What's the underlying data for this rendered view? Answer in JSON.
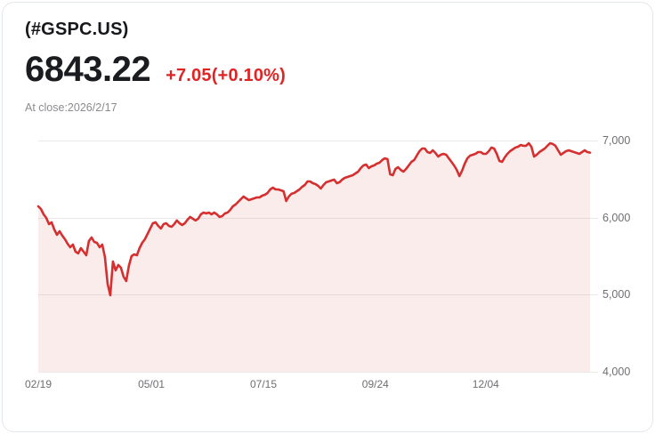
{
  "header": {
    "symbol": "(#GSPC.US)",
    "price": "6843.22",
    "change": "+7.05(+0.10%)",
    "close_info": "At close:2026/2/17"
  },
  "colors": {
    "line": "#d62f2f",
    "area": "rgba(214,47,47,0.09)",
    "change_text": "#e02424",
    "grid": "#e9e9e9",
    "axis_label": "#6e6e73"
  },
  "chart_data": {
    "type": "area",
    "title": "(#GSPC.US) one-year price history",
    "xlabel": "",
    "ylabel": "",
    "legend": "none",
    "grid": "horizontal",
    "ylim": [
      4000,
      7138
    ],
    "y_ticks": [
      {
        "label": "7,000",
        "value": 7000
      },
      {
        "label": "6,000",
        "value": 6000
      },
      {
        "label": "5,000",
        "value": 5000
      },
      {
        "label": "4,000",
        "value": 4000
      }
    ],
    "x_ticks": [
      {
        "label": "02/19",
        "t": 0.0
      },
      {
        "label": "05/01",
        "t": 0.205
      },
      {
        "label": "07/15",
        "t": 0.408
      },
      {
        "label": "09/24",
        "t": 0.611
      },
      {
        "label": "12/04",
        "t": 0.811
      }
    ],
    "values": [
      6146,
      6111,
      6042,
      5996,
      5915,
      5938,
      5846,
      5777,
      5823,
      5765,
      5719,
      5661,
      5615,
      5650,
      5558,
      5535,
      5604,
      5558,
      5511,
      5696,
      5742,
      5684,
      5673,
      5615,
      5650,
      5488,
      5142,
      4992,
      5431,
      5315,
      5385,
      5350,
      5235,
      5177,
      5373,
      5500,
      5523,
      5511,
      5604,
      5673,
      5719,
      5788,
      5858,
      5927,
      5938,
      5892,
      5858,
      5915,
      5927,
      5892,
      5881,
      5915,
      5962,
      5927,
      5904,
      5927,
      5973,
      6008,
      5985,
      5962,
      5985,
      6042,
      6065,
      6054,
      6065,
      6042,
      6065,
      6042,
      6008,
      6019,
      6054,
      6065,
      6100,
      6146,
      6169,
      6204,
      6238,
      6273,
      6250,
      6227,
      6238,
      6250,
      6261,
      6261,
      6284,
      6296,
      6319,
      6365,
      6388,
      6365,
      6365,
      6354,
      6342,
      6215,
      6273,
      6308,
      6319,
      6342,
      6365,
      6400,
      6423,
      6469,
      6469,
      6446,
      6434,
      6411,
      6377,
      6423,
      6458,
      6469,
      6481,
      6492,
      6446,
      6458,
      6492,
      6515,
      6527,
      6538,
      6550,
      6573,
      6596,
      6642,
      6677,
      6688,
      6642,
      6665,
      6677,
      6700,
      6711,
      6746,
      6769,
      6758,
      6561,
      6550,
      6631,
      6654,
      6619,
      6596,
      6631,
      6677,
      6723,
      6746,
      6804,
      6861,
      6896,
      6896,
      6850,
      6838,
      6873,
      6838,
      6792,
      6815,
      6827,
      6815,
      6769,
      6723,
      6677,
      6619,
      6538,
      6608,
      6700,
      6769,
      6804,
      6815,
      6827,
      6850,
      6850,
      6827,
      6827,
      6861,
      6908,
      6896,
      6827,
      6734,
      6723,
      6781,
      6827,
      6861,
      6884,
      6908,
      6919,
      6942,
      6931,
      6931,
      6965,
      6919,
      6792,
      6815,
      6850,
      6873,
      6896,
      6931,
      6965,
      6954,
      6931,
      6873,
      6815,
      6838,
      6861,
      6873,
      6861,
      6850,
      6838,
      6827,
      6850,
      6873,
      6850,
      6843.22
    ]
  }
}
